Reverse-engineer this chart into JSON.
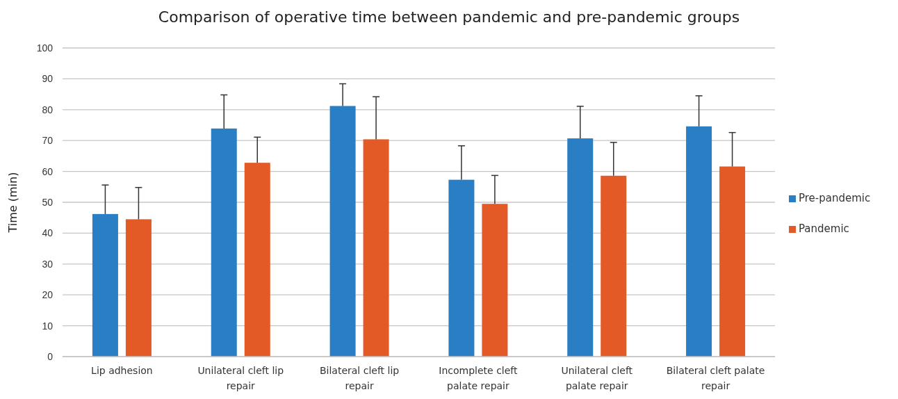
{
  "chart_data": {
    "type": "bar",
    "title": "Comparison of operative time between pandemic and pre-pandemic groups",
    "ylabel": "Time (min)",
    "categories": [
      "Lip adhesion",
      "Unilateral cleft lip repair",
      "Bilateral cleft lip repair",
      "Incomplete cleft palate repair",
      "Unilateral cleft palate repair",
      "Bilateral cleft palate repair"
    ],
    "series": [
      {
        "name": "Pre-pandemic",
        "color": "#2a7ec3",
        "values": [
          46.2,
          73.9,
          81.2,
          57.3,
          70.7,
          74.6
        ],
        "errors": [
          [
            46.2,
            55.6
          ],
          [
            73.9,
            84.8
          ],
          [
            81.2,
            88.4
          ],
          [
            57.3,
            68.3
          ],
          [
            70.7,
            81.1
          ],
          [
            74.6,
            84.5
          ]
        ]
      },
      {
        "name": "Pandemic",
        "color": "#e45a26",
        "values": [
          44.5,
          62.8,
          70.4,
          49.5,
          58.6,
          61.6
        ],
        "errors": [
          [
            44.5,
            54.8
          ],
          [
            62.8,
            71.1
          ],
          [
            70.4,
            84.2
          ],
          [
            49.5,
            58.7
          ],
          [
            58.6,
            69.4
          ],
          [
            61.6,
            72.6
          ]
        ]
      }
    ],
    "ylim": [
      0,
      100
    ],
    "yticks": [
      0,
      10,
      20,
      30,
      40,
      50,
      60,
      70,
      80,
      90,
      100
    ],
    "grid": "y",
    "legend": "right"
  }
}
